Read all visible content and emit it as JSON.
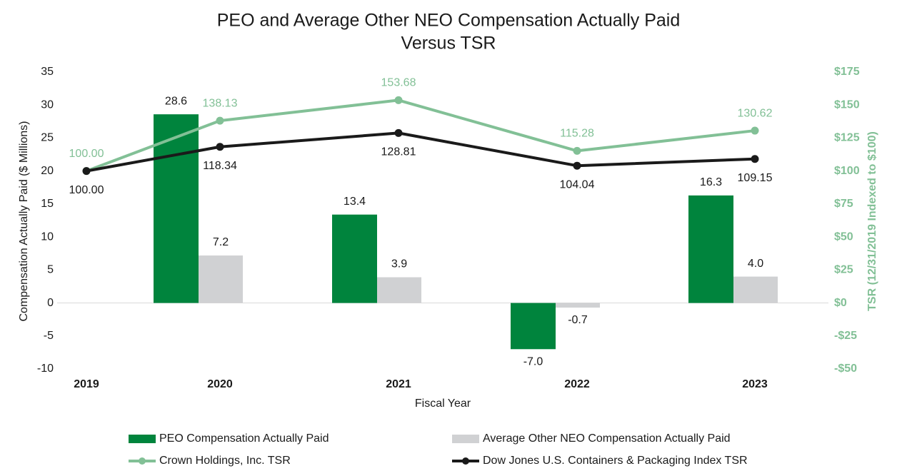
{
  "chart_data": {
    "type": "bar-line",
    "title": [
      "PEO and Average Other NEO Compensation Actually Paid",
      "Versus TSR"
    ],
    "x_label": "Fiscal Year",
    "y_label": "Compensation Actually Paid ($ Millions)",
    "y2_label": "TSR (12/31/2019 Indexed to $100)",
    "categories": [
      "2019",
      "2020",
      "2021",
      "2022",
      "2023"
    ],
    "ylim": [
      -10,
      35
    ],
    "yticks": [
      -10,
      -5,
      0,
      5,
      10,
      15,
      20,
      25,
      30,
      35
    ],
    "y2lim": [
      -50,
      175
    ],
    "y2ticks": [
      {
        "value": -50,
        "label": "-$50"
      },
      {
        "value": -25,
        "label": "-$25"
      },
      {
        "value": 0,
        "label": "$0"
      },
      {
        "value": 25,
        "label": "$25"
      },
      {
        "value": 50,
        "label": "$50"
      },
      {
        "value": 75,
        "label": "$75"
      },
      {
        "value": 100,
        "label": "$100"
      },
      {
        "value": 125,
        "label": "$125"
      },
      {
        "value": 150,
        "label": "$150"
      },
      {
        "value": 175,
        "label": "$175"
      }
    ],
    "series": [
      {
        "name": "PEO Compensation Actually Paid",
        "type": "bar",
        "color": "#00843d",
        "values": [
          null,
          28.6,
          13.4,
          -7.0,
          16.3
        ],
        "value_labels": [
          null,
          "28.6",
          "13.4",
          "-7.0",
          "16.3"
        ]
      },
      {
        "name": "Average Other NEO Compensation Actually Paid",
        "type": "bar",
        "color": "#d0d1d3",
        "values": [
          null,
          7.2,
          3.9,
          -0.7,
          4.0
        ],
        "value_labels": [
          null,
          "7.2",
          "3.9",
          "-0.7",
          "4.0"
        ]
      },
      {
        "name": "Crown Holdings, Inc. TSR",
        "type": "line",
        "axis": "y2",
        "color": "#82c096",
        "values": [
          100.0,
          138.13,
          153.68,
          115.28,
          130.62
        ],
        "value_labels": [
          "100.00",
          "138.13",
          "153.68",
          "115.28",
          "130.62"
        ]
      },
      {
        "name": "Dow Jones U.S. Containers & Packaging Index TSR",
        "type": "line",
        "axis": "y2",
        "color": "#1a1a1a",
        "values": [
          100.0,
          118.34,
          128.81,
          104.04,
          109.15
        ],
        "value_labels": [
          "100.00",
          "118.34",
          "128.81",
          "104.04",
          "109.15"
        ]
      }
    ]
  }
}
